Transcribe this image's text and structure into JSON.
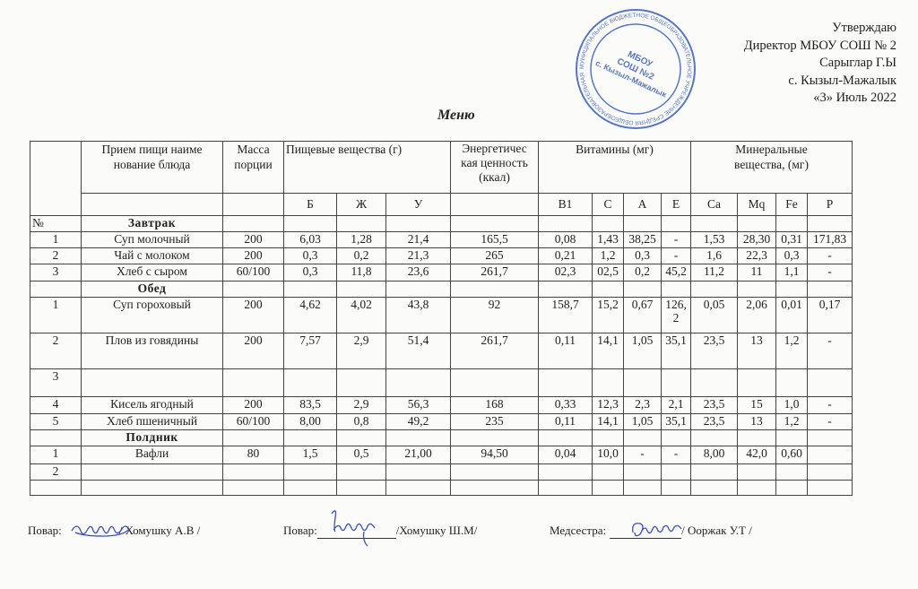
{
  "approval": {
    "lines": [
      "Утверждаю",
      "Директор МБОУ СОШ № 2",
      "Сарыглар Г.Ы",
      "с. Кызыл-Мажалык",
      "«3» Июль 2022"
    ]
  },
  "stamp": {
    "outer_text": "МУНИЦИПАЛЬНОЕ БЮДЖЕТНОЕ ОБЩЕОБРАЗОВАТЕЛЬНОЕ УЧРЕЖДЕНИЕ СРЕДНЯЯ ОБЩЕОБРАЗОВАТЕЛЬНАЯ ШКОЛА №2 С. КЫЗЫЛ-МАЖАЛЫК",
    "center_lines": [
      "МБОУ",
      "СОШ №2",
      "с. Кызыл-Мажалык"
    ],
    "color": "#3b5fb8"
  },
  "title": "Меню",
  "table": {
    "headers": {
      "meal": "Прием пищи наиме нование блюда",
      "mass": "Масса порции",
      "nutrients": "Пищевые вещества (г)",
      "energy": "Энергетичес кая ценность (ккал)",
      "vitamins": "Витамины (мг)",
      "minerals": "Минеральные вещества, (мг)",
      "num": "№",
      "sub": [
        "Б",
        "Ж",
        "У",
        "",
        "B1",
        "C",
        "A",
        "E",
        "Ca",
        "Mq",
        "Fe",
        "P"
      ]
    },
    "sections": [
      {
        "name": "Завтрак",
        "rows": [
          [
            "1",
            "Суп молочный",
            "200",
            "6,03",
            "1,28",
            "21,4",
            "165,5",
            "0,08",
            "1,43",
            "38,25",
            "-",
            "1,53",
            "28,30",
            "0,31",
            "171,83"
          ],
          [
            "2",
            "Чай с молоком",
            "200",
            "0,3",
            "0,2",
            "21,3",
            "265",
            "0,21",
            "1,2",
            "0,3",
            "-",
            "1,6",
            "22,3",
            "0,3",
            "-"
          ],
          [
            "3",
            "Хлеб с сыром",
            "60/100",
            "0,3",
            "11,8",
            "23,6",
            "261,7",
            "02,3",
            "02,5",
            "0,2",
            "45,2",
            "11,2",
            "11",
            "1,1",
            "-"
          ]
        ]
      },
      {
        "name": "Обед",
        "rows": [
          [
            "1",
            "Суп гороховый",
            "200",
            "4,62",
            "4,02",
            "43,8",
            "92",
            "158,7",
            "15,2",
            "0,67",
            "126,2",
            "0,05",
            "2,06",
            "0,01",
            "0,17"
          ],
          [
            "2",
            "Плов из говядины",
            "200",
            "7,57",
            "2,9",
            "51,4",
            "261,7",
            "0,11",
            "14,1",
            "1,05",
            "35,1",
            "23,5",
            "13",
            "1,2",
            "-"
          ],
          [
            "3",
            "",
            "",
            "",
            "",
            "",
            "",
            "",
            "",
            "",
            "",
            "",
            "",
            "",
            ""
          ],
          [
            "4",
            "Кисель ягодный",
            "200",
            "83,5",
            "2,9",
            "56,3",
            "168",
            "0,33",
            "12,3",
            "2,3",
            "2,1",
            "23,5",
            "15",
            "1,0",
            "-"
          ],
          [
            "5",
            "Хлеб пшеничный",
            "60/100",
            "8,00",
            "0,8",
            "49,2",
            "235",
            "0,11",
            "14,1",
            "1,05",
            "35,1",
            "23,5",
            "13",
            "1,2",
            "-"
          ]
        ]
      },
      {
        "name": "Полдник",
        "rows": [
          [
            "1",
            "Вафли",
            "80",
            "1,5",
            "0,5",
            "21,00",
            "94,50",
            "0,04",
            "10,0",
            "-",
            "-",
            "8,00",
            "42,0",
            "0,60",
            ""
          ],
          [
            "2",
            "",
            "",
            "",
            "",
            "",
            "",
            "",
            "",
            "",
            "",
            "",
            "",
            "",
            ""
          ],
          [
            "",
            "",
            "",
            "",
            "",
            "",
            "",
            "",
            "",
            "",
            "",
            "",
            "",
            "",
            ""
          ]
        ]
      }
    ]
  },
  "footer": {
    "cook1_label": "Повар:",
    "cook1_name": "/ Хомушку А.В /",
    "cook2_label": "Повар:",
    "cook2_name": "/Хомушку Ш.М/",
    "nurse_label": "Медсестра:",
    "nurse_name": "/ Ооржак У.Т /",
    "signature_color": "#3a4fb0"
  }
}
